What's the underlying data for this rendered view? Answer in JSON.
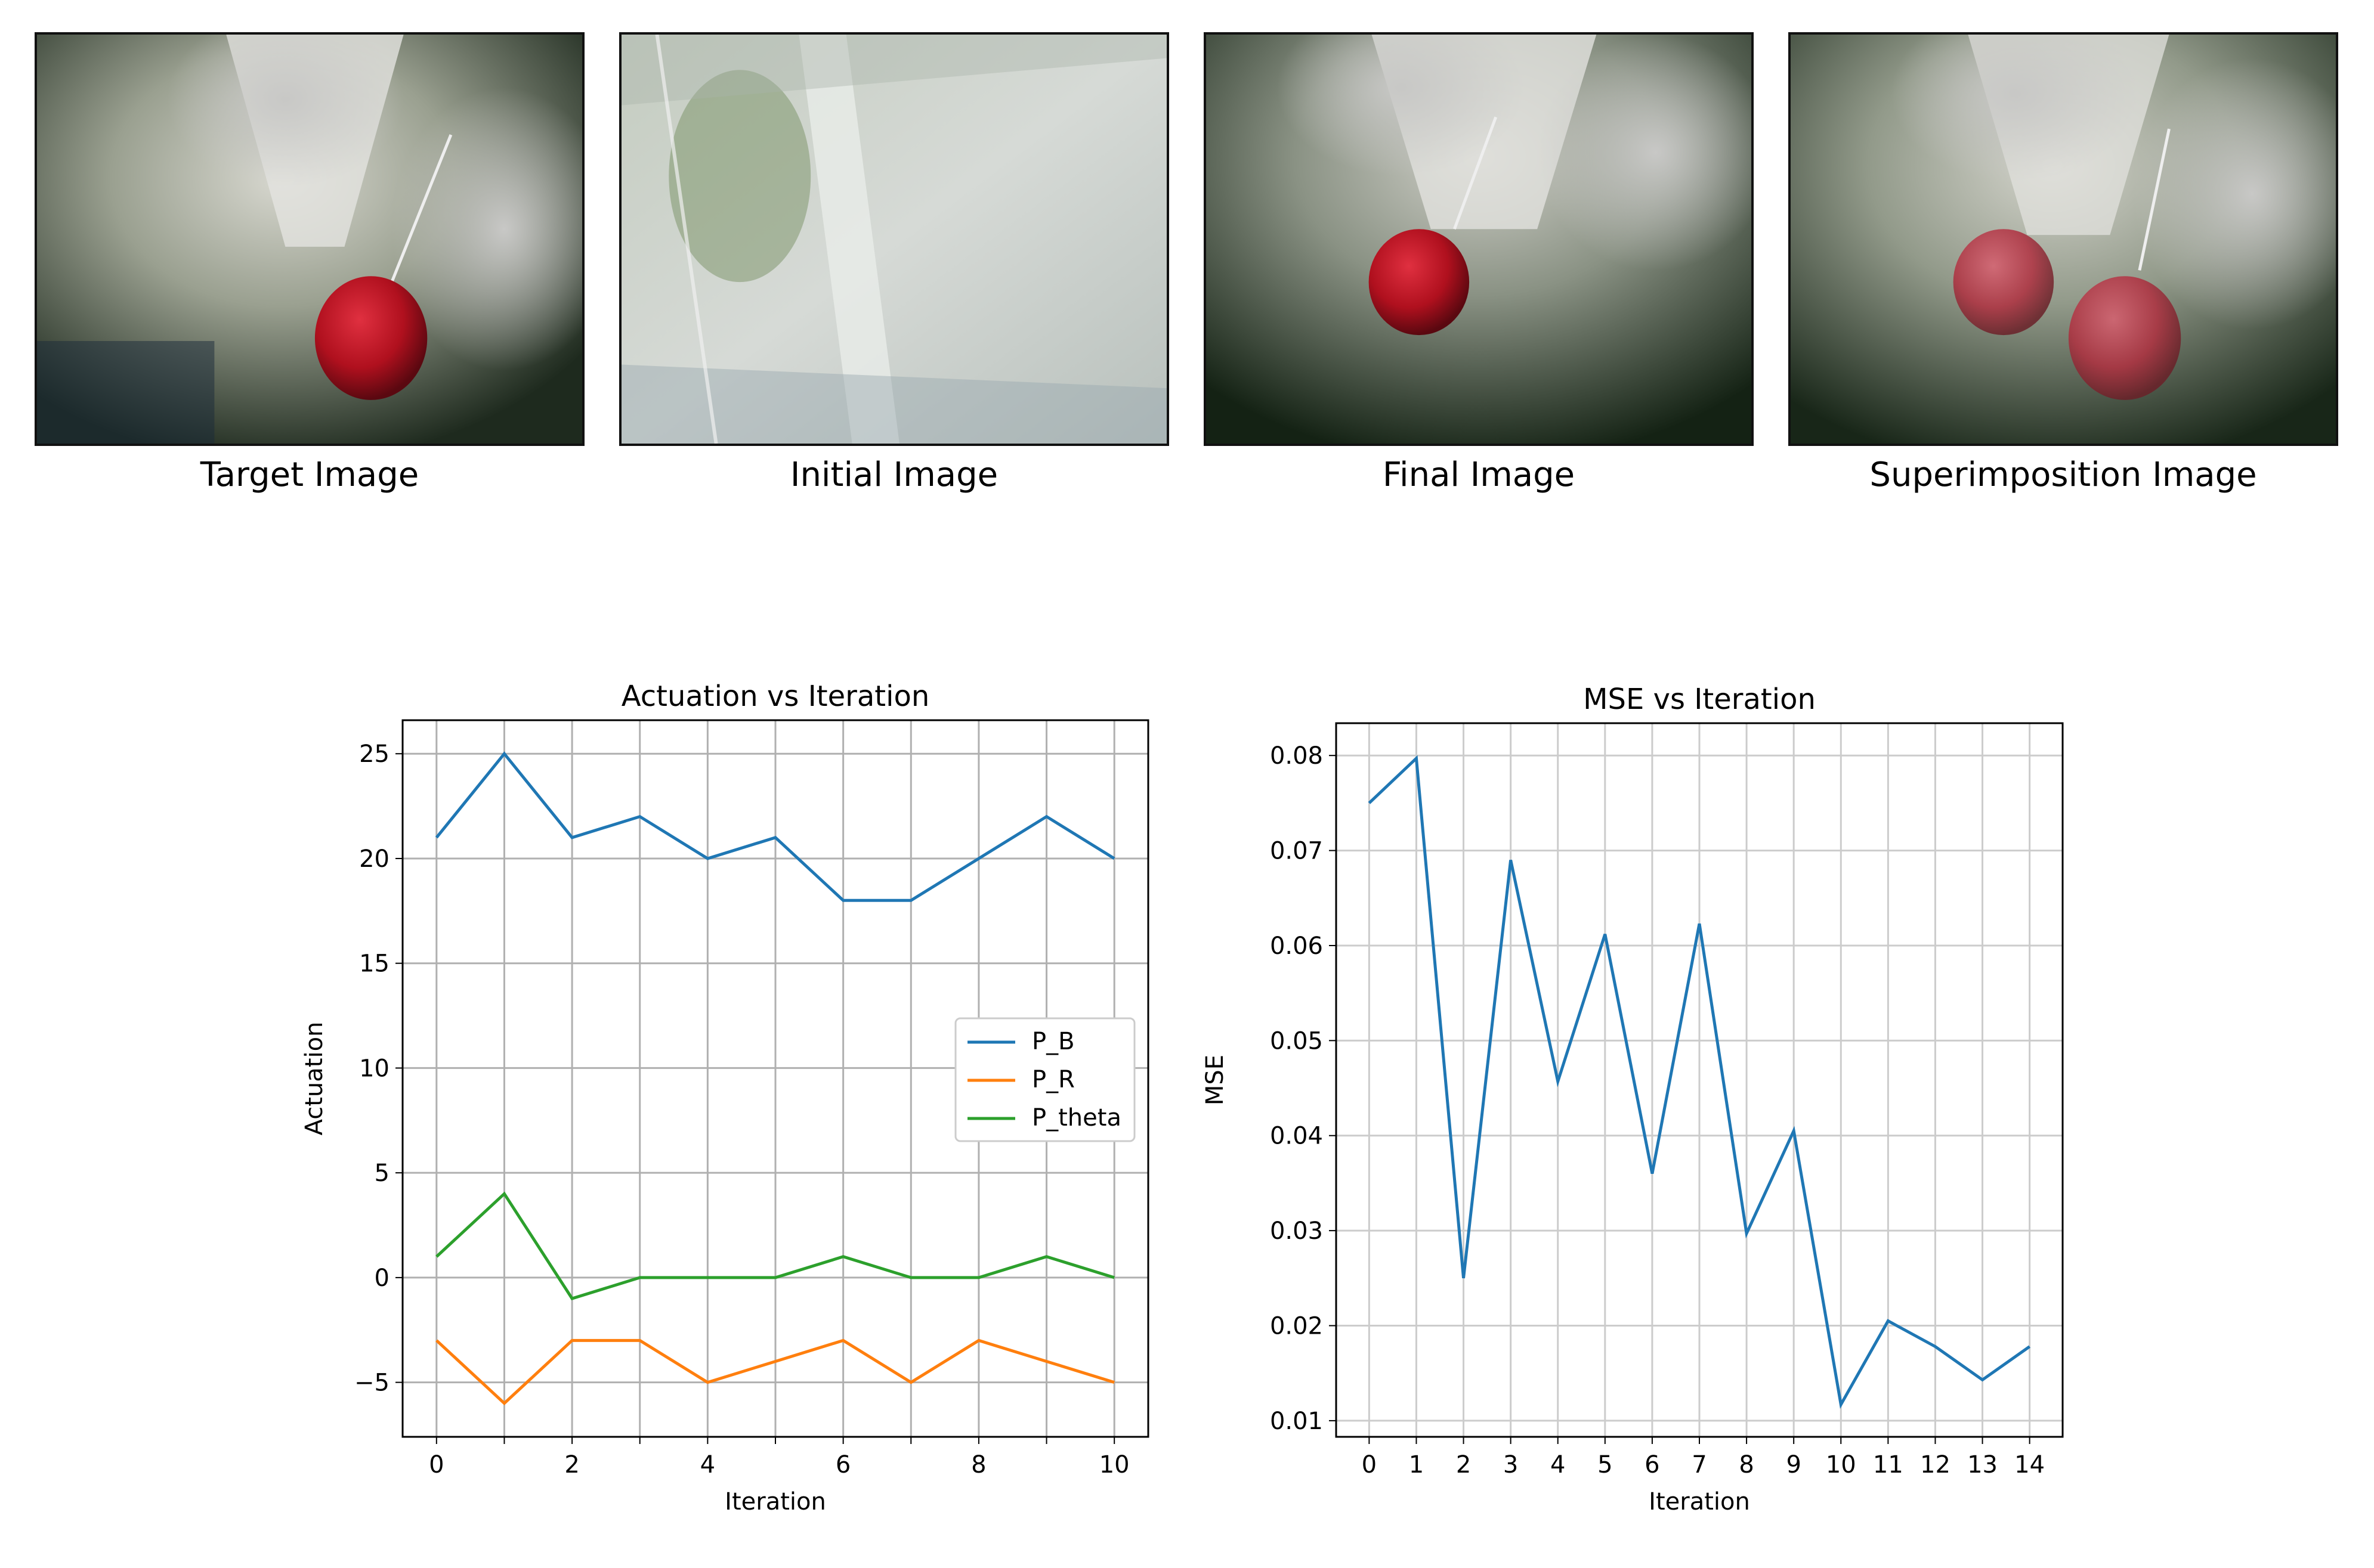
{
  "images": [
    {
      "caption": "Target Image",
      "icon": "target-image-photo"
    },
    {
      "caption": "Initial Image",
      "icon": "initial-image-photo"
    },
    {
      "caption": "Final Image",
      "icon": "final-image-photo"
    },
    {
      "caption": "Superimposition Image",
      "icon": "superimposition-image-photo"
    }
  ],
  "chart_data": [
    {
      "type": "line",
      "title": "Actuation vs Iteration",
      "xlabel": "Iteration",
      "ylabel": "Actuation",
      "x": [
        0,
        1,
        2,
        3,
        4,
        5,
        6,
        7,
        8,
        9,
        10
      ],
      "xticks": [
        0,
        2,
        4,
        6,
        8,
        10
      ],
      "yticks": [
        -5,
        0,
        5,
        10,
        15,
        20,
        25
      ],
      "ytick_labels": [
        "−5",
        "0",
        "5",
        "10",
        "15",
        "20",
        "25"
      ],
      "xlim": [
        -0.5,
        10.5
      ],
      "ylim": [
        -7.6,
        26.6
      ],
      "grid": true,
      "legend_position": "center-right",
      "series": [
        {
          "name": "P_B",
          "color": "#1f77b4",
          "values": [
            21,
            25,
            21,
            22,
            20,
            21,
            18,
            18,
            20,
            22,
            20
          ]
        },
        {
          "name": "P_R",
          "color": "#ff7f0e",
          "values": [
            -3,
            -6,
            -3,
            -3,
            -5,
            -4,
            -3,
            -5,
            -3,
            -4,
            -5
          ]
        },
        {
          "name": "P_theta",
          "color": "#2ca02c",
          "values": [
            1,
            4,
            -1,
            0,
            0,
            0,
            1,
            0,
            0,
            1,
            0
          ]
        }
      ]
    },
    {
      "type": "line",
      "title": "MSE vs Iteration",
      "xlabel": "Iteration",
      "ylabel": "MSE",
      "x": [
        0,
        1,
        2,
        3,
        4,
        5,
        6,
        7,
        8,
        9,
        10,
        11,
        12,
        13,
        14
      ],
      "xticks": [
        0,
        1,
        2,
        3,
        4,
        5,
        6,
        7,
        8,
        9,
        10,
        11,
        12,
        13,
        14
      ],
      "yticks": [
        0.01,
        0.02,
        0.03,
        0.04,
        0.05,
        0.06,
        0.07,
        0.08
      ],
      "ytick_labels": [
        "0.01",
        "0.02",
        "0.03",
        "0.04",
        "0.05",
        "0.06",
        "0.07",
        "0.08"
      ],
      "xlim": [
        -0.7,
        14.7
      ],
      "ylim": [
        0.0083,
        0.0834
      ],
      "grid": true,
      "series": [
        {
          "color": "#1f77b4",
          "values": [
            0.075,
            0.0797,
            0.025,
            0.069,
            0.0457,
            0.0612,
            0.036,
            0.0623,
            0.0297,
            0.0405,
            0.0117,
            0.0205,
            0.0178,
            0.0143,
            0.0178
          ]
        }
      ]
    }
  ]
}
